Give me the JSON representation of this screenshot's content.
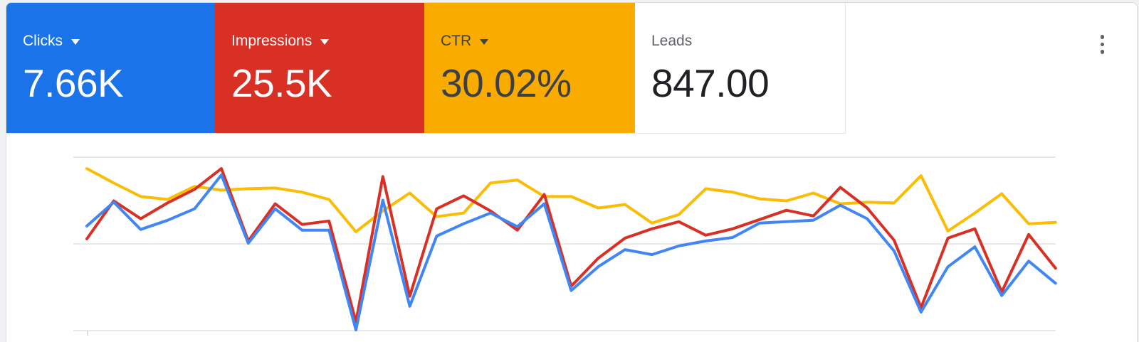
{
  "page": {
    "background_color": "#eff1f3",
    "card_background_color": "#ffffff"
  },
  "scorecards": [
    {
      "label": "Clicks",
      "value": "7.66K",
      "bg": "#1a73e8",
      "label_color": "#ffffff",
      "value_color": "#ffffff",
      "has_dropdown": true
    },
    {
      "label": "Impressions",
      "value": "25.5K",
      "bg": "#d93025",
      "label_color": "#ffffff",
      "value_color": "#ffffff",
      "has_dropdown": true
    },
    {
      "label": "CTR",
      "value": "30.02%",
      "bg": "#f9ab00",
      "label_color": "#3c4043",
      "value_color": "#3c4043",
      "has_dropdown": true
    },
    {
      "label": "Leads",
      "value": "847.00",
      "bg": "#ffffff",
      "label_color": "#5f6368",
      "value_color": "#202124",
      "has_dropdown": false
    }
  ],
  "menu": {
    "kebab_icon_color": "#5f6368"
  },
  "chart_data": {
    "type": "line",
    "title": "",
    "xlabel": "",
    "ylabel": "",
    "x_tick_labels_visible": false,
    "y_tick_labels_visible": false,
    "legend": "none (colored scorecards above act as legend)",
    "gridlines": {
      "horizontal_count": 3
    },
    "ylim": [
      0,
      100
    ],
    "value_note": "no axis scales are rendered in the screenshot; values are estimated percent of plot height (0 = bottom axis, 100 = top gridline)",
    "point_count": 37,
    "series": [
      {
        "name": "Clicks",
        "color": "#4285f4",
        "values_pct": [
          60.3,
          74.0,
          58.3,
          63.6,
          70.2,
          89.7,
          50.4,
          70.2,
          57.9,
          57.9,
          0.4,
          75.2,
          14.0,
          54.5,
          61.6,
          67.8,
          59.9,
          73.1,
          23.1,
          36.8,
          46.7,
          43.8,
          48.8,
          51.7,
          53.7,
          62.0,
          62.8,
          63.6,
          72.3,
          64.5,
          45.9,
          10.7,
          36.8,
          48.3,
          20.2,
          40.1,
          27.3
        ]
      },
      {
        "name": "Impressions",
        "color": "#d93025",
        "values_pct": [
          52.9,
          74.8,
          64.5,
          73.6,
          81.4,
          93.4,
          51.7,
          73.1,
          61.2,
          63.2,
          5.0,
          88.8,
          19.8,
          70.2,
          77.7,
          69.0,
          57.9,
          78.5,
          25.6,
          41.7,
          53.3,
          58.7,
          62.8,
          55.0,
          58.7,
          64.0,
          69.4,
          66.1,
          82.6,
          70.7,
          52.1,
          13.2,
          53.3,
          58.7,
          22.3,
          55.4,
          36.0
        ]
      },
      {
        "name": "CTR",
        "color": "#fbbc04",
        "values_pct": [
          93.4,
          85.1,
          77.3,
          75.6,
          83.1,
          81.0,
          81.8,
          82.2,
          79.8,
          75.6,
          57.0,
          69.0,
          79.3,
          65.7,
          67.8,
          85.1,
          86.8,
          77.3,
          77.3,
          70.7,
          72.7,
          62.0,
          66.9,
          81.8,
          79.8,
          76.0,
          74.8,
          79.3,
          73.1,
          74.0,
          73.6,
          89.3,
          57.4,
          67.8,
          78.9,
          61.6,
          62.4
        ]
      }
    ],
    "grid_color": "#e8e8e8",
    "tick_color": "#dadce0"
  }
}
